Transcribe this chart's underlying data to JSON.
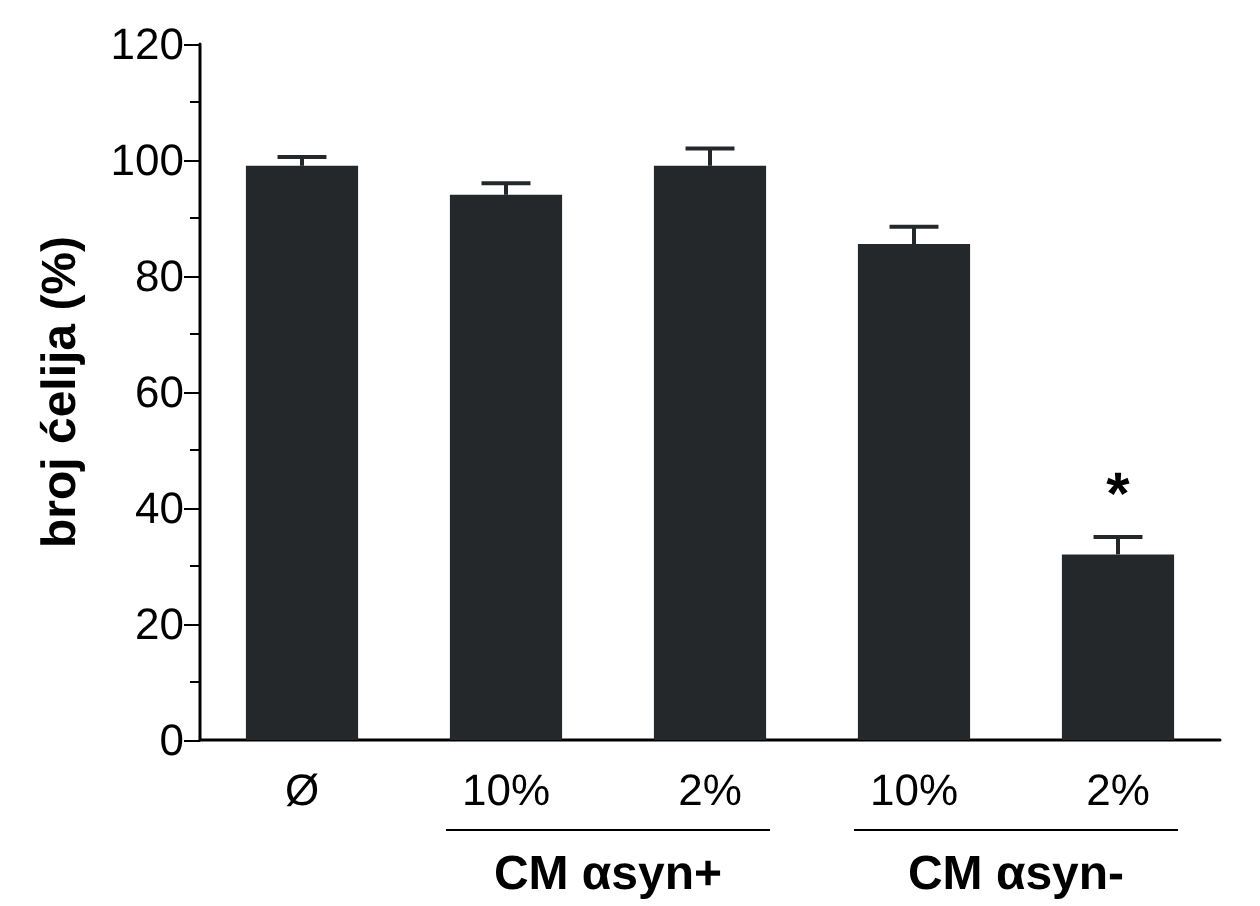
{
  "chart_data": {
    "type": "bar",
    "ylabel": "broj ćelija (%)",
    "categories": [
      "Ø",
      "10%",
      "2%",
      "10%",
      "2%"
    ],
    "values": [
      99,
      94,
      99,
      85.5,
      32
    ],
    "color": "#25282a",
    "errors": [
      [
        99,
        100.5
      ],
      [
        94,
        96
      ],
      [
        99,
        102
      ],
      [
        85.5,
        88.5
      ],
      [
        32,
        35
      ]
    ],
    "ylim": [
      0,
      120
    ],
    "yticks": [
      0,
      20,
      40,
      60,
      80,
      100,
      120
    ],
    "grid": false,
    "annotations": [
      "CM αsyn+",
      "CM αsyn-",
      "*"
    ]
  }
}
